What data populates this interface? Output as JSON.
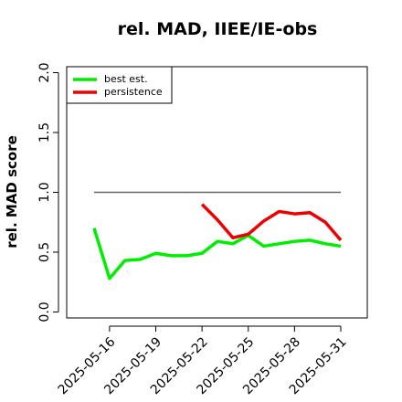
{
  "chart_data": {
    "type": "line",
    "title": "rel. MAD, IIEE/IE-obs",
    "ylabel": "rel. MAD score",
    "x": [
      "2025-05-15",
      "2025-05-16",
      "2025-05-17",
      "2025-05-18",
      "2025-05-19",
      "2025-05-20",
      "2025-05-21",
      "2025-05-22",
      "2025-05-23",
      "2025-05-24",
      "2025-05-25",
      "2025-05-26",
      "2025-05-27",
      "2025-05-28",
      "2025-05-29",
      "2025-05-30",
      "2025-05-31"
    ],
    "xticks": [
      "2025-05-16",
      "2025-05-19",
      "2025-05-22",
      "2025-05-25",
      "2025-05-28",
      "2025-05-31"
    ],
    "series": [
      {
        "name": "best est.",
        "color": "#00ee00",
        "values": [
          0.7,
          0.28,
          0.43,
          0.44,
          0.49,
          0.47,
          0.47,
          0.49,
          0.59,
          0.57,
          0.64,
          0.55,
          0.57,
          0.59,
          0.6,
          0.57,
          0.55
        ]
      },
      {
        "name": "persistence",
        "color": "#ee0000",
        "values": [
          null,
          null,
          null,
          null,
          null,
          null,
          null,
          0.9,
          0.77,
          0.62,
          0.65,
          0.76,
          0.84,
          0.82,
          0.83,
          0.75,
          0.6
        ]
      }
    ],
    "reference_line": {
      "value": 1.0,
      "color": "#666666"
    },
    "ylim": [
      -0.05,
      2.05
    ],
    "yticks": [
      {
        "value": 0,
        "label": "0.0"
      },
      {
        "value": 0.5,
        "label": "0.5"
      },
      {
        "value": 1,
        "label": "1.0"
      },
      {
        "value": 1.5,
        "label": "1.5"
      },
      {
        "value": 2,
        "label": "2.0"
      }
    ],
    "legend": "top-left"
  }
}
